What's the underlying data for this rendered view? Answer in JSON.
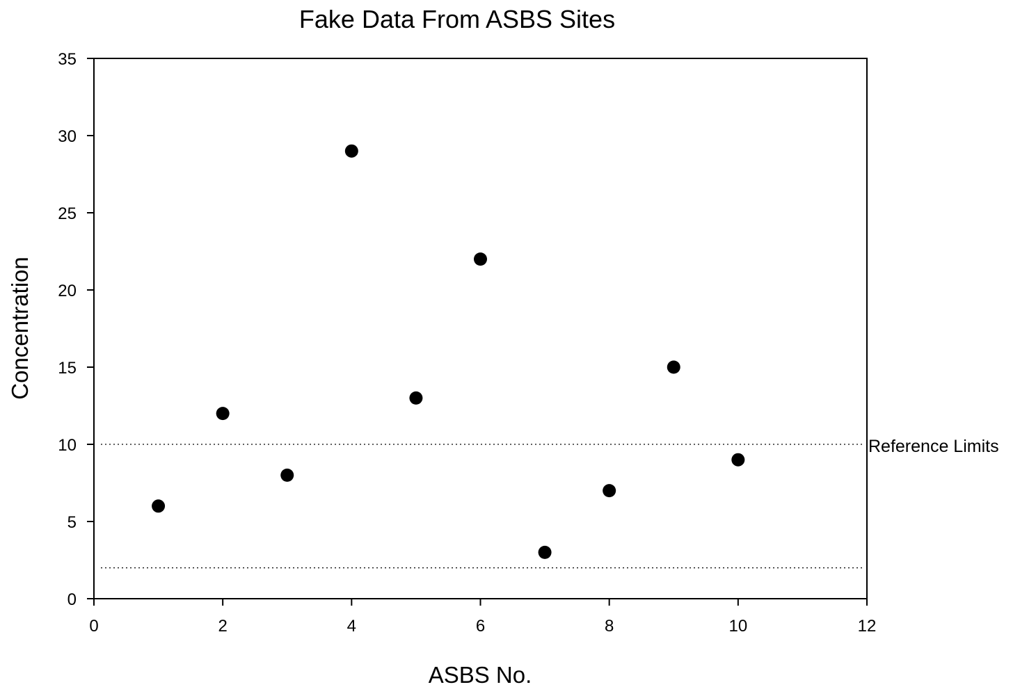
{
  "chart_data": {
    "type": "scatter",
    "title": "Fake Data From ASBS Sites",
    "xlabel": "ASBS No.",
    "ylabel": "Concentration",
    "xlim": [
      0,
      12
    ],
    "ylim": [
      0,
      35
    ],
    "x_ticks": [
      0,
      2,
      4,
      6,
      8,
      10,
      12
    ],
    "y_ticks": [
      0,
      5,
      10,
      15,
      20,
      25,
      30,
      35
    ],
    "x_tick_labels": [
      "0",
      "2",
      "4",
      "6",
      "8",
      "10",
      "12"
    ],
    "y_tick_labels": [
      "0",
      "5",
      "10",
      "15",
      "20",
      "25",
      "30",
      "35"
    ],
    "grid": false,
    "legend": "none",
    "series": [
      {
        "x": [
          1,
          2,
          3,
          4,
          5,
          6,
          7,
          8,
          9,
          10
        ],
        "y": [
          6,
          12,
          8,
          29,
          13,
          22,
          3,
          7,
          15,
          9
        ],
        "color": "#000000",
        "marker": "filled-circle"
      }
    ],
    "reference_lines": [
      {
        "y": 10,
        "style": "dotted",
        "color": "#000000"
      },
      {
        "y": 2,
        "style": "dotted",
        "color": "#000000"
      }
    ],
    "annotations": [
      {
        "text": "Reference Limits",
        "y": 10
      }
    ]
  }
}
